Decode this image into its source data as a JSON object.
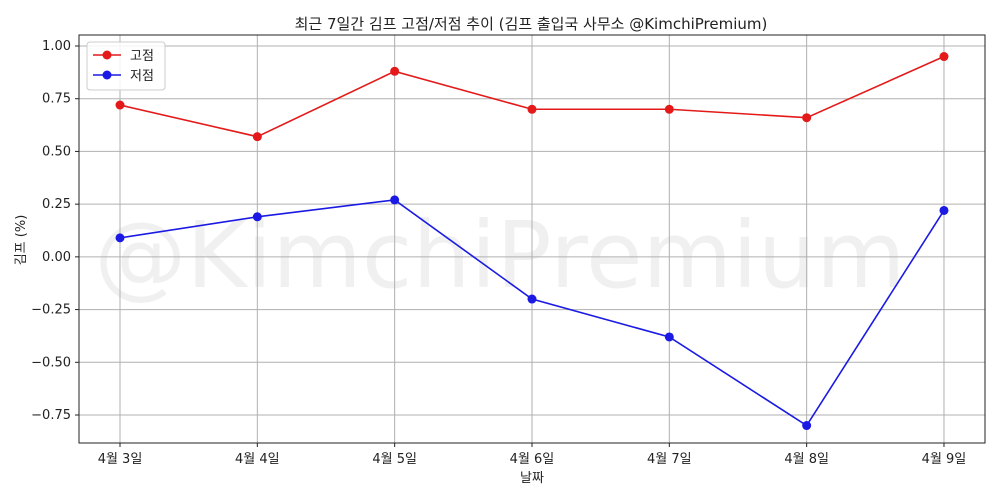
{
  "chart_data": {
    "type": "line",
    "title": "최근 7일간 김프 고점/저점 추이 (김프 출입국 사무소 @KimchiPremium)",
    "xlabel": "날짜",
    "ylabel": "김프 (%)",
    "categories": [
      "4월 3일",
      "4월 4일",
      "4월 5일",
      "4월 6일",
      "4월 7일",
      "4월 8일",
      "4월 9일"
    ],
    "series": [
      {
        "name": "고점",
        "color": "#e41a1a",
        "values": [
          0.72,
          0.57,
          0.88,
          0.7,
          0.7,
          0.66,
          0.95
        ]
      },
      {
        "name": "저점",
        "color": "#1a1ae4",
        "values": [
          0.09,
          0.19,
          0.27,
          -0.2,
          -0.38,
          -0.8,
          0.22
        ]
      }
    ],
    "ylim": [
      -0.89,
      1.04
    ],
    "yticks": [
      -0.75,
      -0.5,
      -0.25,
      0.0,
      0.25,
      0.5,
      0.75,
      1.0
    ],
    "ytick_labels": [
      "−0.75",
      "−0.50",
      "−0.25",
      "0.00",
      "0.25",
      "0.50",
      "0.75",
      "1.00"
    ],
    "grid": true,
    "legend_position": "top-left",
    "watermark": "@KimchiPremium"
  }
}
